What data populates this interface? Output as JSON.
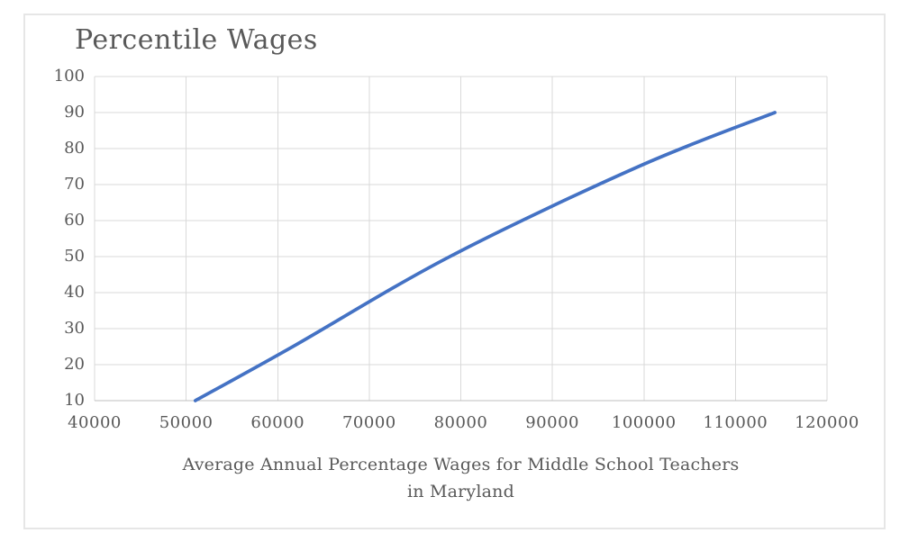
{
  "chart": {
    "title": "Percentile Wages",
    "x_axis_title_line1": "Average Annual Percentage Wages for Middle School Teachers",
    "x_axis_title_line2": "in Maryland"
  },
  "chart_data": {
    "type": "line",
    "title": "Percentile Wages",
    "xlabel": "Average Annual Percentage Wages for Middle School Teachers in Maryland",
    "ylabel": "",
    "series": [
      {
        "name": "Percentile Wages",
        "points": [
          [
            51000,
            10
          ],
          [
            61650,
            25
          ],
          [
            78800,
            50
          ],
          [
            99400,
            75
          ],
          [
            114300,
            90
          ]
        ]
      }
    ],
    "xlim": [
      40000,
      120000
    ],
    "ylim": [
      10,
      100
    ],
    "x_ticks": [
      40000,
      50000,
      60000,
      70000,
      80000,
      90000,
      100000,
      110000,
      120000
    ],
    "y_ticks": [
      10,
      20,
      30,
      40,
      50,
      60,
      70,
      80,
      90,
      100
    ],
    "grid": true,
    "legend": false,
    "smooth": true,
    "line_color": "#4472C4",
    "gridline_color": "#D9D9D9",
    "axis_line_color": "#BFBFBF",
    "text_color": "#595959",
    "frame_color": "#E6E6E6"
  }
}
